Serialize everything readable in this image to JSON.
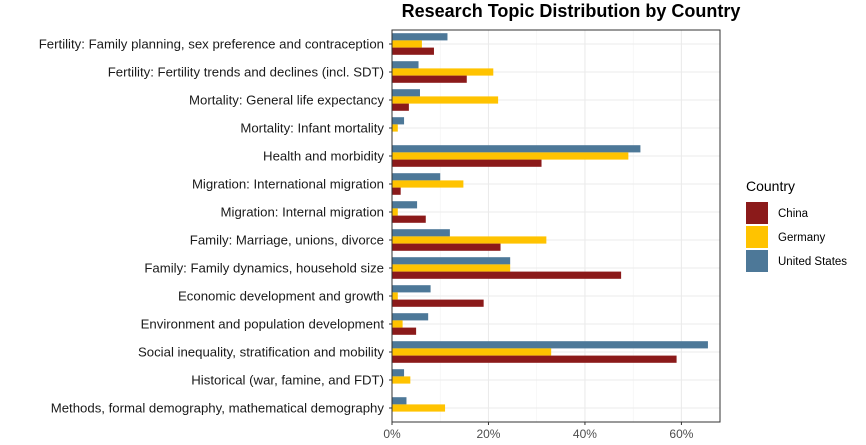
{
  "chart_data": {
    "type": "bar",
    "orientation": "horizontal",
    "title": "Research Topic Distribution by Country",
    "xlabel": "",
    "ylabel": "",
    "xlim": [
      0,
      0.68
    ],
    "x_ticks": [
      0,
      0.2,
      0.4,
      0.6
    ],
    "x_tick_labels": [
      "0%",
      "20%",
      "40%",
      "60%"
    ],
    "grid": true,
    "legend_position": "right",
    "legend_title": "Country",
    "categories": [
      "Fertility: Family planning, sex preference and contraception",
      "Fertility: Fertility trends and declines (incl. SDT)",
      "Mortality: General life expectancy",
      "Mortality: Infant mortality",
      "Health and morbidity",
      "Migration: International migration",
      "Migration: Internal migration",
      "Family: Marriage, unions, divorce",
      "Family: Family dynamics, household size",
      "Economic development and growth",
      "Environment and population development",
      "Social inequality, stratification and mobility",
      "Historical (war, famine, and FDT)",
      "Methods, formal demography, mathematical demography"
    ],
    "series": [
      {
        "name": "China",
        "color": "#8B1A1A",
        "values": [
          0.087,
          0.155,
          0.035,
          0,
          0.31,
          0.018,
          0.07,
          0.225,
          0.475,
          0.19,
          0.05,
          0.59,
          0,
          0
        ]
      },
      {
        "name": "Germany",
        "color": "#FFC300",
        "values": [
          0.062,
          0.21,
          0.22,
          0.012,
          0.49,
          0.148,
          0.012,
          0.32,
          0.245,
          0.012,
          0.022,
          0.33,
          0.038,
          0.11
        ]
      },
      {
        "name": "United States",
        "color": "#4D7898",
        "values": [
          0.115,
          0.055,
          0.058,
          0.025,
          0.515,
          0.1,
          0.052,
          0.12,
          0.245,
          0.08,
          0.075,
          0.655,
          0.025,
          0.03
        ]
      }
    ]
  }
}
